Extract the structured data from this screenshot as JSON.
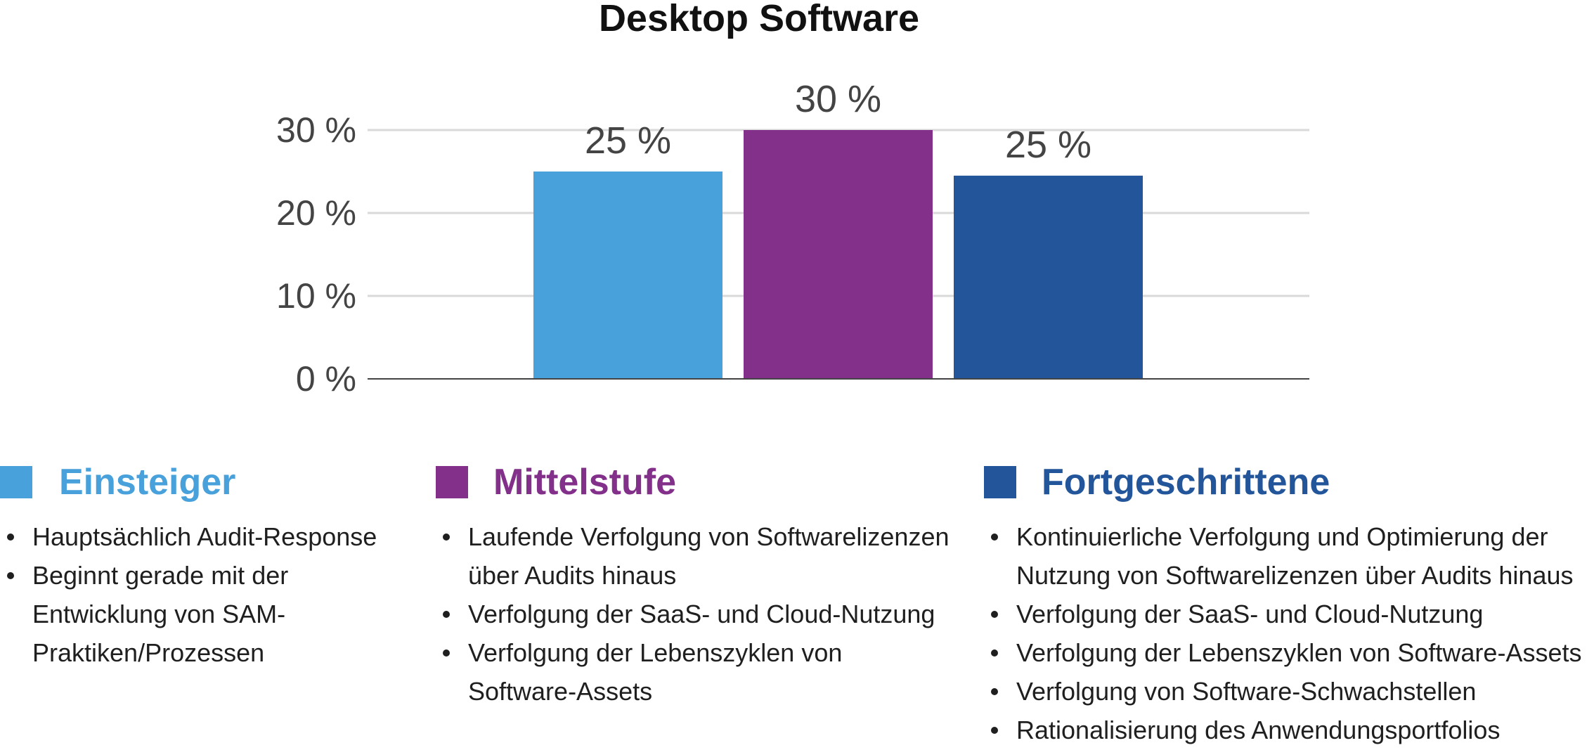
{
  "chart_data": {
    "type": "bar",
    "title": "Desktop Software",
    "categories": [
      "Einsteiger",
      "Mittelstufe",
      "Fortgeschrittene"
    ],
    "values": [
      25,
      30,
      24.5
    ],
    "data_labels": [
      "25 %",
      "30 %",
      "25 %"
    ],
    "colors": [
      "#48A1DB",
      "#82308A",
      "#23559A"
    ],
    "yticks": [
      0,
      10,
      20,
      30
    ],
    "ytick_labels": [
      "0 %",
      "10 %",
      "20 %",
      "30 %"
    ],
    "ylim": [
      0,
      30
    ],
    "grid": true,
    "xlabel": "",
    "ylabel": ""
  },
  "legend": [
    {
      "label": "Einsteiger",
      "color": "#48A1DB",
      "items": [
        "Hauptsächlich Audit-Response",
        "Beginnt gerade mit der Entwicklung von SAM-Praktiken/Prozessen"
      ]
    },
    {
      "label": "Mittelstufe",
      "color": "#82308A",
      "items": [
        "Laufende Verfolgung von Softwarelizenzen über Audits hinaus",
        "Verfolgung der SaaS- und Cloud-Nutzung",
        "Verfolgung der Lebenszyklen von Software-Assets"
      ]
    },
    {
      "label": "Fortgeschrittene",
      "color": "#23559A",
      "items": [
        "Kontinuierliche Verfolgung und Optimierung der Nutzung von Softwarelizenzen über Audits hinaus",
        "Verfolgung der SaaS- und Cloud-Nutzung",
        "Verfolgung der Lebenszyklen von Software-Assets",
        "Verfolgung von Software-Schwachstellen",
        "Rationalisierung des Anwendungsportfolios"
      ]
    }
  ]
}
